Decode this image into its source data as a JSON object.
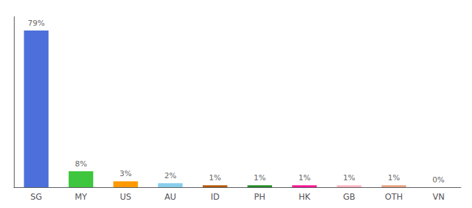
{
  "chart_data": {
    "type": "bar",
    "categories": [
      "SG",
      "MY",
      "US",
      "AU",
      "ID",
      "PH",
      "HK",
      "GB",
      "OTH",
      "VN"
    ],
    "values": [
      79,
      8,
      3,
      2,
      1,
      1,
      1,
      1,
      1,
      0
    ],
    "value_labels": [
      "79%",
      "8%",
      "3%",
      "2%",
      "1%",
      "1%",
      "1%",
      "1%",
      "1%",
      "0%"
    ],
    "colors": [
      "#4d6fdb",
      "#3ec63e",
      "#ff9900",
      "#87ceeb",
      "#b35900",
      "#228b22",
      "#ff1493",
      "#ffb6c1",
      "#e8a080",
      "#dddddd"
    ],
    "ylim": [
      0,
      86
    ],
    "grid": false,
    "data_labels": true,
    "tick_labels": "x"
  }
}
